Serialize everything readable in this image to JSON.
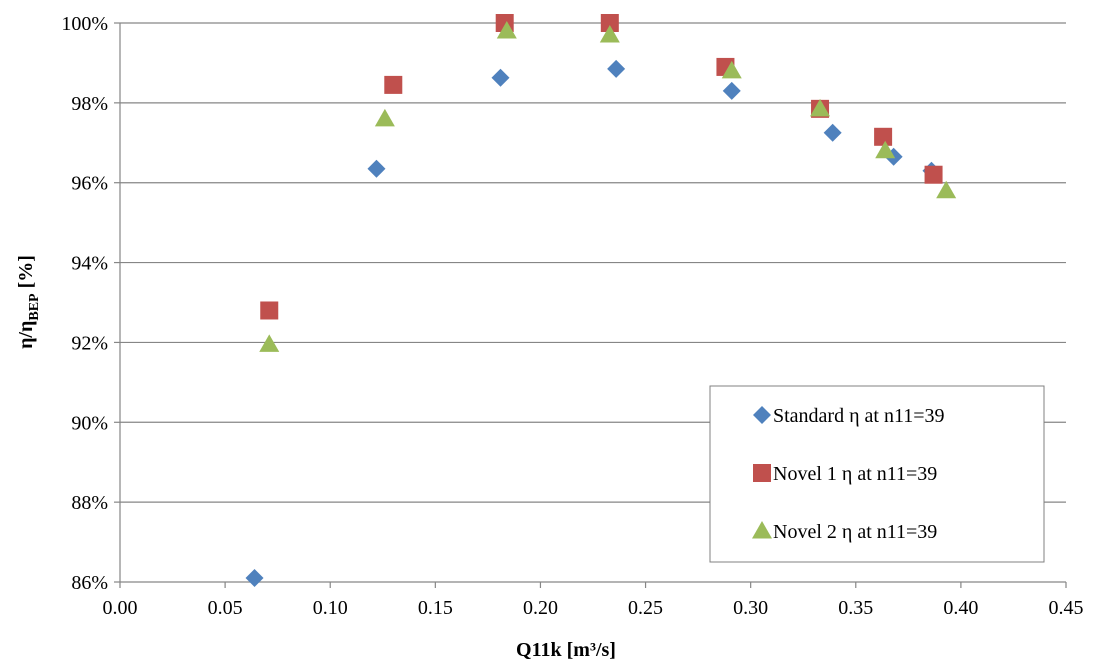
{
  "chart_data": {
    "type": "scatter",
    "title": "",
    "xlabel": "Q11k  [m³/s]",
    "ylabel_main": "η/η",
    "ylabel_sub": "BEP",
    "ylabel_tail": " [%]",
    "xlim": [
      0.0,
      0.45
    ],
    "ylim": [
      86,
      100
    ],
    "x_ticks": [
      0.0,
      0.05,
      0.1,
      0.15,
      0.2,
      0.25,
      0.3,
      0.35,
      0.4,
      0.45
    ],
    "x_tick_labels": [
      "0.00",
      "0.05",
      "0.10",
      "0.15",
      "0.20",
      "0.25",
      "0.30",
      "0.35",
      "0.40",
      "0.45"
    ],
    "y_ticks": [
      86,
      88,
      90,
      92,
      94,
      96,
      98,
      100
    ],
    "y_tick_labels": [
      "86%",
      "88%",
      "90%",
      "92%",
      "94%",
      "96%",
      "98%",
      "100%"
    ],
    "grid": "horizontal",
    "legend_placement": "bottom-right",
    "series": [
      {
        "name": "Standard η at n11=39",
        "marker": "diamond",
        "color": "#4F81BD",
        "points": [
          {
            "x": 0.064,
            "y": 86.1
          },
          {
            "x": 0.122,
            "y": 96.35
          },
          {
            "x": 0.181,
            "y": 98.63
          },
          {
            "x": 0.236,
            "y": 98.85
          },
          {
            "x": 0.291,
            "y": 98.3
          },
          {
            "x": 0.339,
            "y": 97.25
          },
          {
            "x": 0.368,
            "y": 96.65
          },
          {
            "x": 0.386,
            "y": 96.3
          }
        ]
      },
      {
        "name": "Novel 1 η at n11=39",
        "marker": "square",
        "color": "#C0504D",
        "points": [
          {
            "x": 0.071,
            "y": 92.8
          },
          {
            "x": 0.13,
            "y": 98.45
          },
          {
            "x": 0.183,
            "y": 100.0
          },
          {
            "x": 0.233,
            "y": 100.0
          },
          {
            "x": 0.288,
            "y": 98.9
          },
          {
            "x": 0.333,
            "y": 97.85
          },
          {
            "x": 0.363,
            "y": 97.15
          },
          {
            "x": 0.387,
            "y": 96.2
          }
        ]
      },
      {
        "name": "Novel 2 η at n11=39",
        "marker": "triangle",
        "color": "#9BBB59",
        "points": [
          {
            "x": 0.071,
            "y": 91.95
          },
          {
            "x": 0.126,
            "y": 97.6
          },
          {
            "x": 0.184,
            "y": 99.8
          },
          {
            "x": 0.233,
            "y": 99.7
          },
          {
            "x": 0.291,
            "y": 98.8
          },
          {
            "x": 0.333,
            "y": 97.85
          },
          {
            "x": 0.364,
            "y": 96.8
          },
          {
            "x": 0.393,
            "y": 95.8
          }
        ]
      }
    ]
  }
}
